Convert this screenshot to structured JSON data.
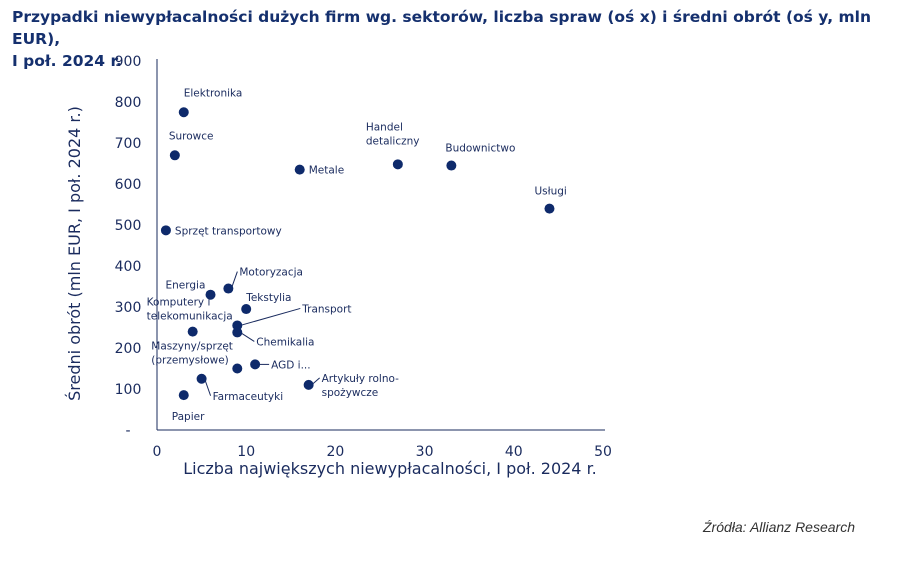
{
  "chart_data": {
    "type": "scatter",
    "title_lines": [
      "Przypadki niewypłacalności dużych firm wg. sektorów, liczba spraw (oś x) i średni obrót (oś y, mln EUR),",
      "I poł. 2024 r."
    ],
    "xlabel": "Liczba największych niewypłacalności, I poł. 2024 r.",
    "ylabel": "Średni obrót (mln EUR, I poł. 2024 r.)",
    "xlim": [
      0,
      50
    ],
    "ylim": [
      0,
      900
    ],
    "x_ticks": [
      "0",
      "10",
      "20",
      "30",
      "40",
      "50"
    ],
    "y_ticks": [
      "-",
      "100",
      "200",
      "300",
      "400",
      "500",
      "600",
      "700",
      "800",
      "900"
    ],
    "grid": false,
    "color": "#0e2a6b",
    "points": [
      {
        "label": [
          "Elektronika"
        ],
        "x": 3,
        "y": 775
      },
      {
        "label": [
          "Surowce"
        ],
        "x": 2,
        "y": 670
      },
      {
        "label": [
          "Metale"
        ],
        "x": 16,
        "y": 635
      },
      {
        "label": [
          "Handel",
          "detaliczny"
        ],
        "x": 27,
        "y": 648
      },
      {
        "label": [
          "Budownictwo"
        ],
        "x": 33,
        "y": 645
      },
      {
        "label": [
          "Usługi"
        ],
        "x": 44,
        "y": 540
      },
      {
        "label": [
          "Sprzęt transportowy"
        ],
        "x": 1,
        "y": 487
      },
      {
        "label": [
          "Motoryzacja"
        ],
        "x": 8,
        "y": 345
      },
      {
        "label": [
          "Energia"
        ],
        "x": 6,
        "y": 330
      },
      {
        "label": [
          "Tekstylia"
        ],
        "x": 10,
        "y": 295
      },
      {
        "label": [
          "Transport"
        ],
        "x": 9,
        "y": 255
      },
      {
        "label": [
          "Komputery i",
          "telekomunikacja"
        ],
        "x": 4,
        "y": 240
      },
      {
        "label": [
          "Chemikalia"
        ],
        "x": 9,
        "y": 238
      },
      {
        "label": [
          "Maszyny/sprzęt",
          "(przemysłowe)"
        ],
        "x": 9,
        "y": 150
      },
      {
        "label": [
          "AGD i..."
        ],
        "x": 11,
        "y": 160
      },
      {
        "label": [
          "Farmaceutyki"
        ],
        "x": 5,
        "y": 125
      },
      {
        "label": [
          "Artykuły rolno-",
          "spożywcze"
        ],
        "x": 17,
        "y": 110
      },
      {
        "label": [
          "Papier"
        ],
        "x": 3,
        "y": 85
      }
    ]
  },
  "source": "Źródła: Allianz Research"
}
